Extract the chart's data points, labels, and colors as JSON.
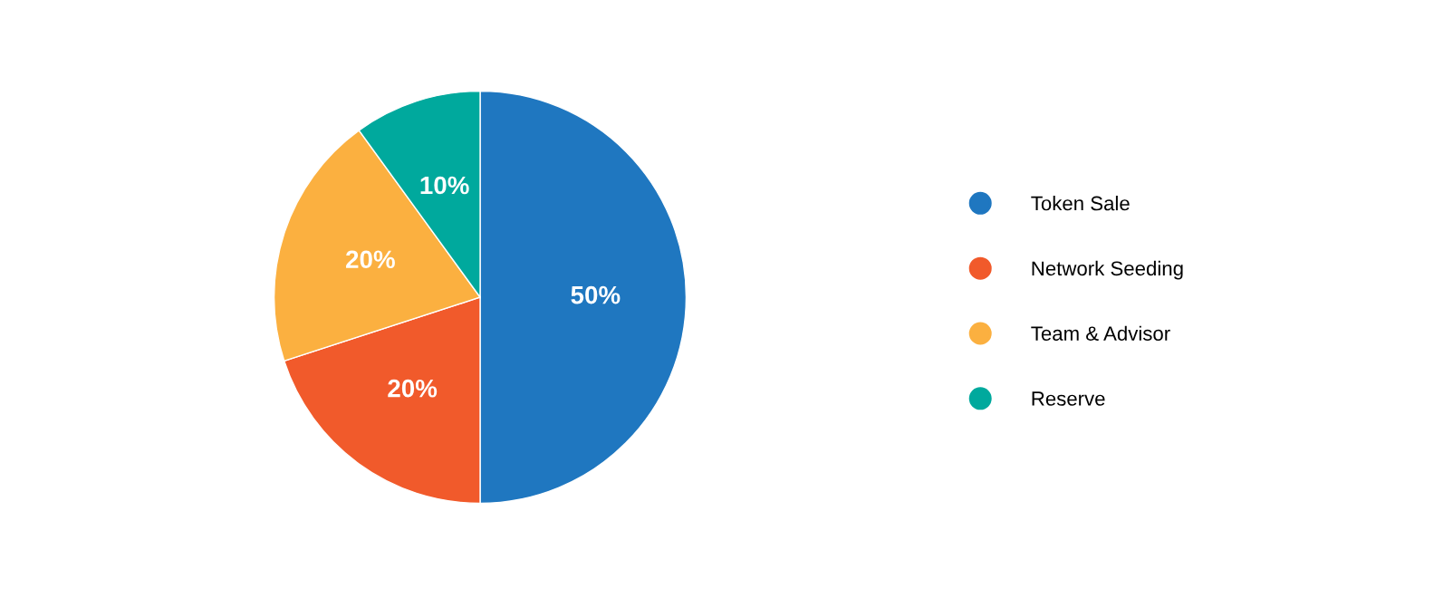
{
  "chart_data": {
    "type": "pie",
    "categories": [
      "Token Sale",
      "Network Seeding",
      "Team & Advisor",
      "Reserve"
    ],
    "values": [
      50,
      20,
      20,
      10
    ],
    "colors": [
      "#1f77c0",
      "#f15a2b",
      "#fbb040",
      "#00a99d"
    ],
    "value_labels": [
      "50%",
      "20%",
      "20%",
      "10%"
    ],
    "legend": "right"
  }
}
